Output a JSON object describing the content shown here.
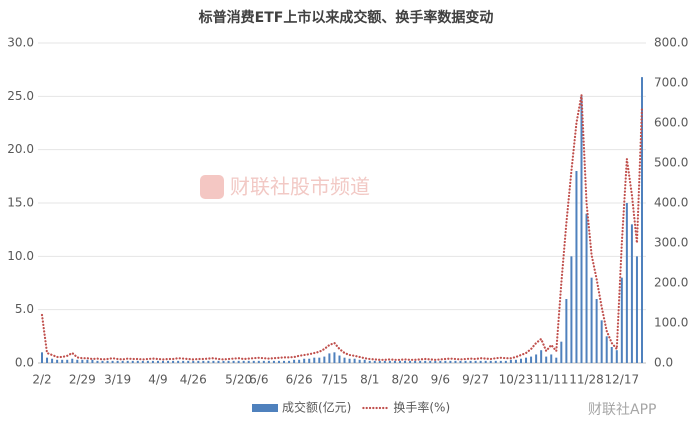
{
  "chart_data": {
    "type": "bar-line",
    "title": "标普消费ETF上市以来成交额、换手率数据变动",
    "watermark": "财联社股市频道",
    "brand": "财联社APP",
    "categories": [
      "2/2",
      null,
      null,
      null,
      null,
      null,
      null,
      null,
      "2/29",
      null,
      null,
      null,
      null,
      null,
      null,
      "3/19",
      null,
      null,
      null,
      null,
      null,
      null,
      null,
      "4/9",
      null,
      null,
      null,
      null,
      null,
      null,
      "4/26",
      null,
      null,
      null,
      null,
      null,
      null,
      null,
      null,
      "5/20",
      null,
      null,
      null,
      "6/6",
      null,
      null,
      null,
      null,
      null,
      null,
      null,
      "6/26",
      null,
      null,
      null,
      null,
      null,
      null,
      "7/15",
      null,
      null,
      null,
      null,
      null,
      null,
      "8/1",
      null,
      null,
      null,
      null,
      null,
      null,
      "8/20",
      null,
      null,
      null,
      null,
      null,
      null,
      "9/6",
      null,
      null,
      null,
      null,
      null,
      null,
      "9/27",
      null,
      null,
      null,
      null,
      null,
      null,
      null,
      "10/23",
      null,
      null,
      null,
      null,
      null,
      null,
      "11/11",
      null,
      null,
      null,
      null,
      null,
      null,
      "11/28",
      null,
      null,
      null,
      null,
      null,
      null,
      "12/17",
      null,
      null,
      null,
      null
    ],
    "series": [
      {
        "name": "成交额(亿元)",
        "color": "#4f81bd",
        "axis": "y",
        "values": [
          1.0,
          0.5,
          0.4,
          0.3,
          0.3,
          0.3,
          0.4,
          0.3,
          0.3,
          0.3,
          0.3,
          0.2,
          0.2,
          0.2,
          0.2,
          0.2,
          0.2,
          0.2,
          0.2,
          0.2,
          0.2,
          0.2,
          0.2,
          0.2,
          0.2,
          0.2,
          0.2,
          0.2,
          0.2,
          0.2,
          0.2,
          0.2,
          0.2,
          0.2,
          0.2,
          0.2,
          0.2,
          0.2,
          0.2,
          0.2,
          0.2,
          0.2,
          0.2,
          0.2,
          0.2,
          0.2,
          0.2,
          0.2,
          0.2,
          0.2,
          0.3,
          0.3,
          0.4,
          0.4,
          0.5,
          0.5,
          0.6,
          0.9,
          1.0,
          0.7,
          0.5,
          0.4,
          0.4,
          0.3,
          0.3,
          0.2,
          0.2,
          0.2,
          0.2,
          0.2,
          0.2,
          0.2,
          0.2,
          0.2,
          0.2,
          0.2,
          0.2,
          0.2,
          0.2,
          0.2,
          0.2,
          0.2,
          0.2,
          0.2,
          0.2,
          0.2,
          0.2,
          0.2,
          0.2,
          0.2,
          0.2,
          0.2,
          0.2,
          0.3,
          0.3,
          0.4,
          0.5,
          0.6,
          0.8,
          1.2,
          0.6,
          0.8,
          0.5,
          2.0,
          6.0,
          10.0,
          18.0,
          25.0,
          14.0,
          8.0,
          6.0,
          4.0,
          2.5,
          1.5,
          1.2,
          8.0,
          15.0,
          13.0,
          10.0,
          26.8
        ]
      },
      {
        "name": "换手率(%)",
        "color": "#c0504d",
        "axis": "y2",
        "values": [
          120,
          25,
          20,
          15,
          15,
          18,
          25,
          14,
          12,
          12,
          10,
          11,
          9,
          10,
          12,
          10,
          9,
          11,
          10,
          10,
          9,
          10,
          11,
          10,
          9,
          10,
          10,
          12,
          11,
          10,
          9,
          10,
          10,
          11,
          12,
          10,
          9,
          10,
          11,
          12,
          10,
          11,
          12,
          13,
          12,
          11,
          12,
          13,
          14,
          14,
          15,
          18,
          20,
          22,
          25,
          28,
          35,
          45,
          50,
          35,
          25,
          20,
          18,
          15,
          12,
          10,
          9,
          8,
          8,
          9,
          8,
          8,
          9,
          8,
          8,
          9,
          10,
          9,
          8,
          9,
          10,
          11,
          10,
          9,
          10,
          11,
          10,
          12,
          11,
          10,
          12,
          13,
          12,
          12,
          15,
          20,
          25,
          35,
          50,
          60,
          30,
          45,
          30,
          200,
          350,
          480,
          600,
          670,
          400,
          270,
          210,
          140,
          80,
          50,
          35,
          300,
          510,
          420,
          300,
          640
        ]
      }
    ],
    "ylim": [
      0,
      30
    ],
    "yticks": [
      {
        "value": 0,
        "label": "0.0"
      },
      {
        "value": 5,
        "label": "5.0"
      },
      {
        "value": 10,
        "label": "10.0"
      },
      {
        "value": 15,
        "label": "15.0"
      },
      {
        "value": 20,
        "label": "20.0"
      },
      {
        "value": 25,
        "label": "25.0"
      },
      {
        "value": 30,
        "label": "30.0"
      }
    ],
    "y2lim": [
      0,
      800
    ],
    "y2ticks": [
      {
        "value": 0,
        "label": "0.0"
      },
      {
        "value": 100,
        "label": "100.0"
      },
      {
        "value": 200,
        "label": "200.0"
      },
      {
        "value": 300,
        "label": "300.0"
      },
      {
        "value": 400,
        "label": "400.0"
      },
      {
        "value": 500,
        "label": "500.0"
      },
      {
        "value": 600,
        "label": "600.0"
      },
      {
        "value": 700,
        "label": "700.0"
      },
      {
        "value": 800,
        "label": "800.0"
      }
    ],
    "grid": true,
    "legend": "bottom"
  }
}
